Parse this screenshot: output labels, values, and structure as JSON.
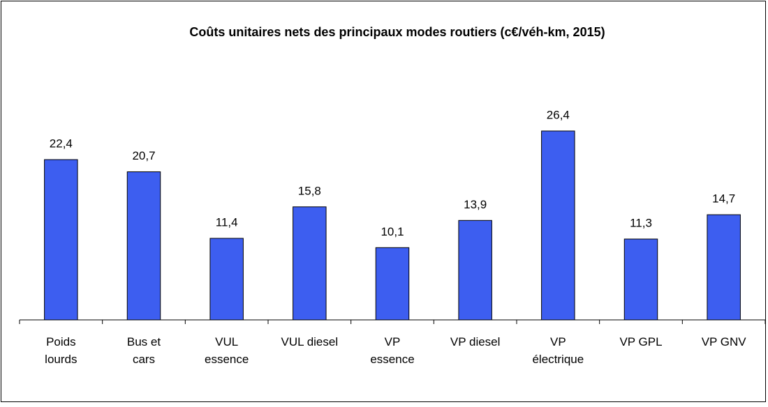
{
  "chart_data": {
    "type": "bar",
    "title": "Coûts unitaires nets des principaux modes routiers (c€/véh-km, 2015)",
    "categories": [
      "Poids\nlourds",
      "Bus et\ncars",
      "VUL\nessence",
      "VUL diesel",
      "VP\nessence",
      "VP diesel",
      "VP\nélectrique",
      "VP GPL",
      "VP GNV"
    ],
    "values": [
      22.4,
      20.7,
      11.4,
      15.8,
      10.1,
      13.9,
      26.4,
      11.3,
      14.7
    ],
    "value_labels": [
      "22,4",
      "20,7",
      "11,4",
      "15,8",
      "10,1",
      "13,9",
      "26,4",
      "11,3",
      "14,7"
    ],
    "color": "#3d5ef0",
    "ylim": [
      0,
      30
    ]
  }
}
